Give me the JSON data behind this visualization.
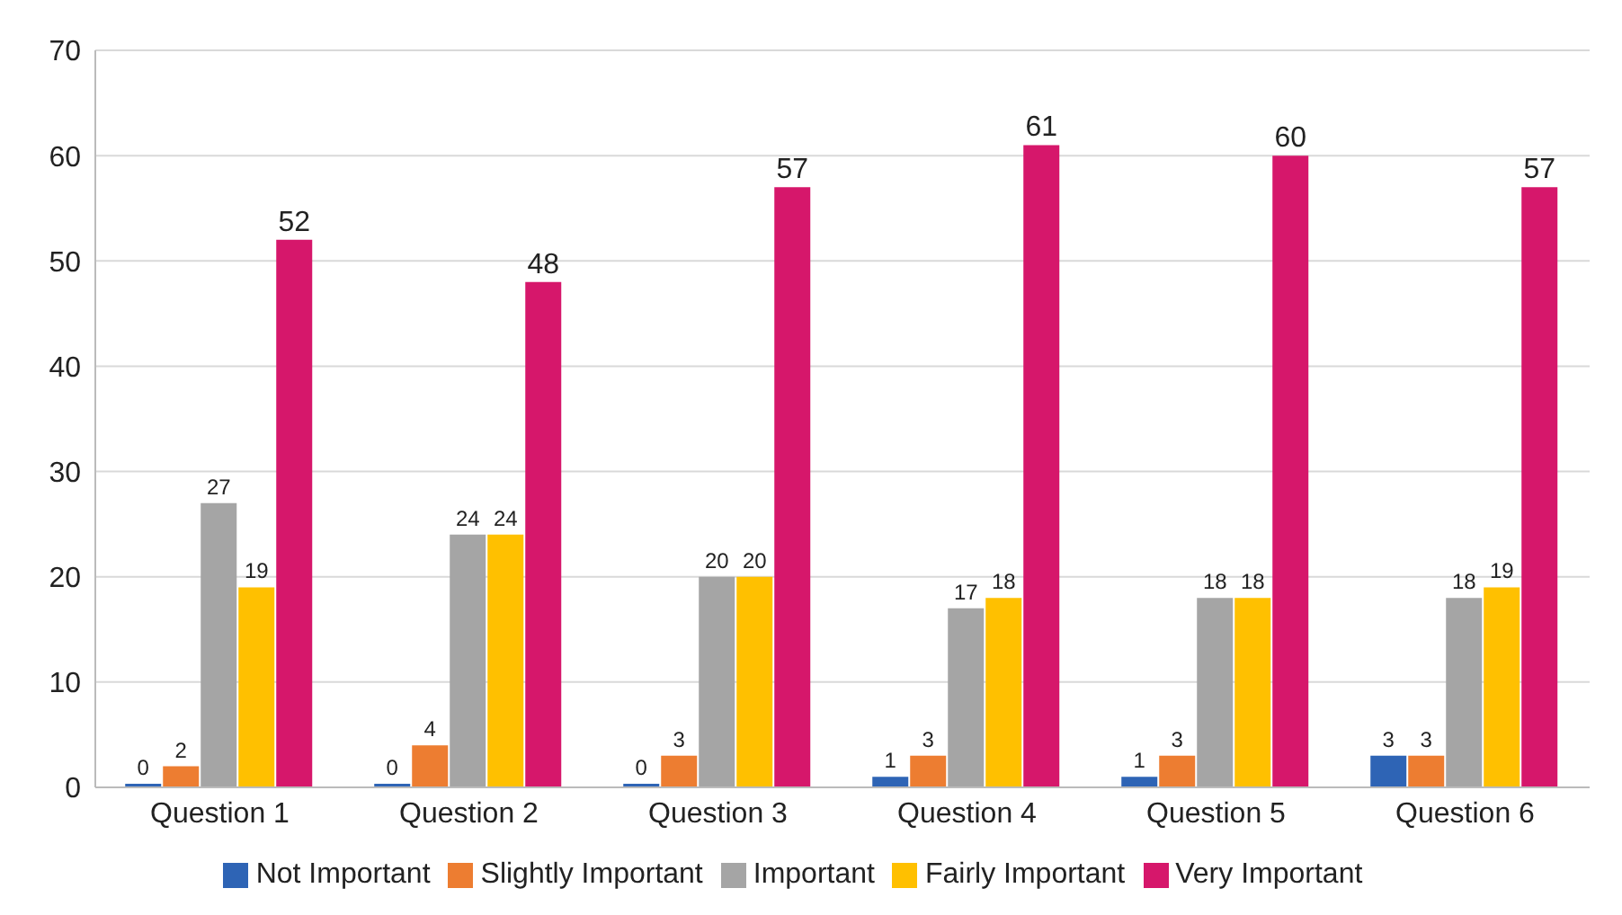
{
  "chart_data": {
    "type": "bar",
    "categories": [
      "Question 1",
      "Question 2",
      "Question 3",
      "Question 4",
      "Question 5",
      "Question 6"
    ],
    "series": [
      {
        "name": "Not Important",
        "color": "#2e64b5",
        "values": [
          0,
          0,
          0,
          1,
          1,
          3
        ]
      },
      {
        "name": "Slightly Important",
        "color": "#ed7d31",
        "values": [
          2,
          4,
          3,
          3,
          3,
          3
        ]
      },
      {
        "name": "Important",
        "color": "#a5a5a5",
        "values": [
          27,
          24,
          20,
          17,
          18,
          18
        ]
      },
      {
        "name": "Fairly Important",
        "color": "#ffc000",
        "values": [
          19,
          24,
          20,
          18,
          18,
          19
        ]
      },
      {
        "name": "Very Important",
        "color": "#d6176b",
        "values": [
          52,
          48,
          57,
          61,
          60,
          57
        ]
      }
    ],
    "ylim": [
      0,
      70
    ],
    "yticks": [
      0,
      10,
      20,
      30,
      40,
      50,
      60,
      70
    ],
    "grid": "y",
    "legend": "bottom",
    "data_labels": true
  }
}
